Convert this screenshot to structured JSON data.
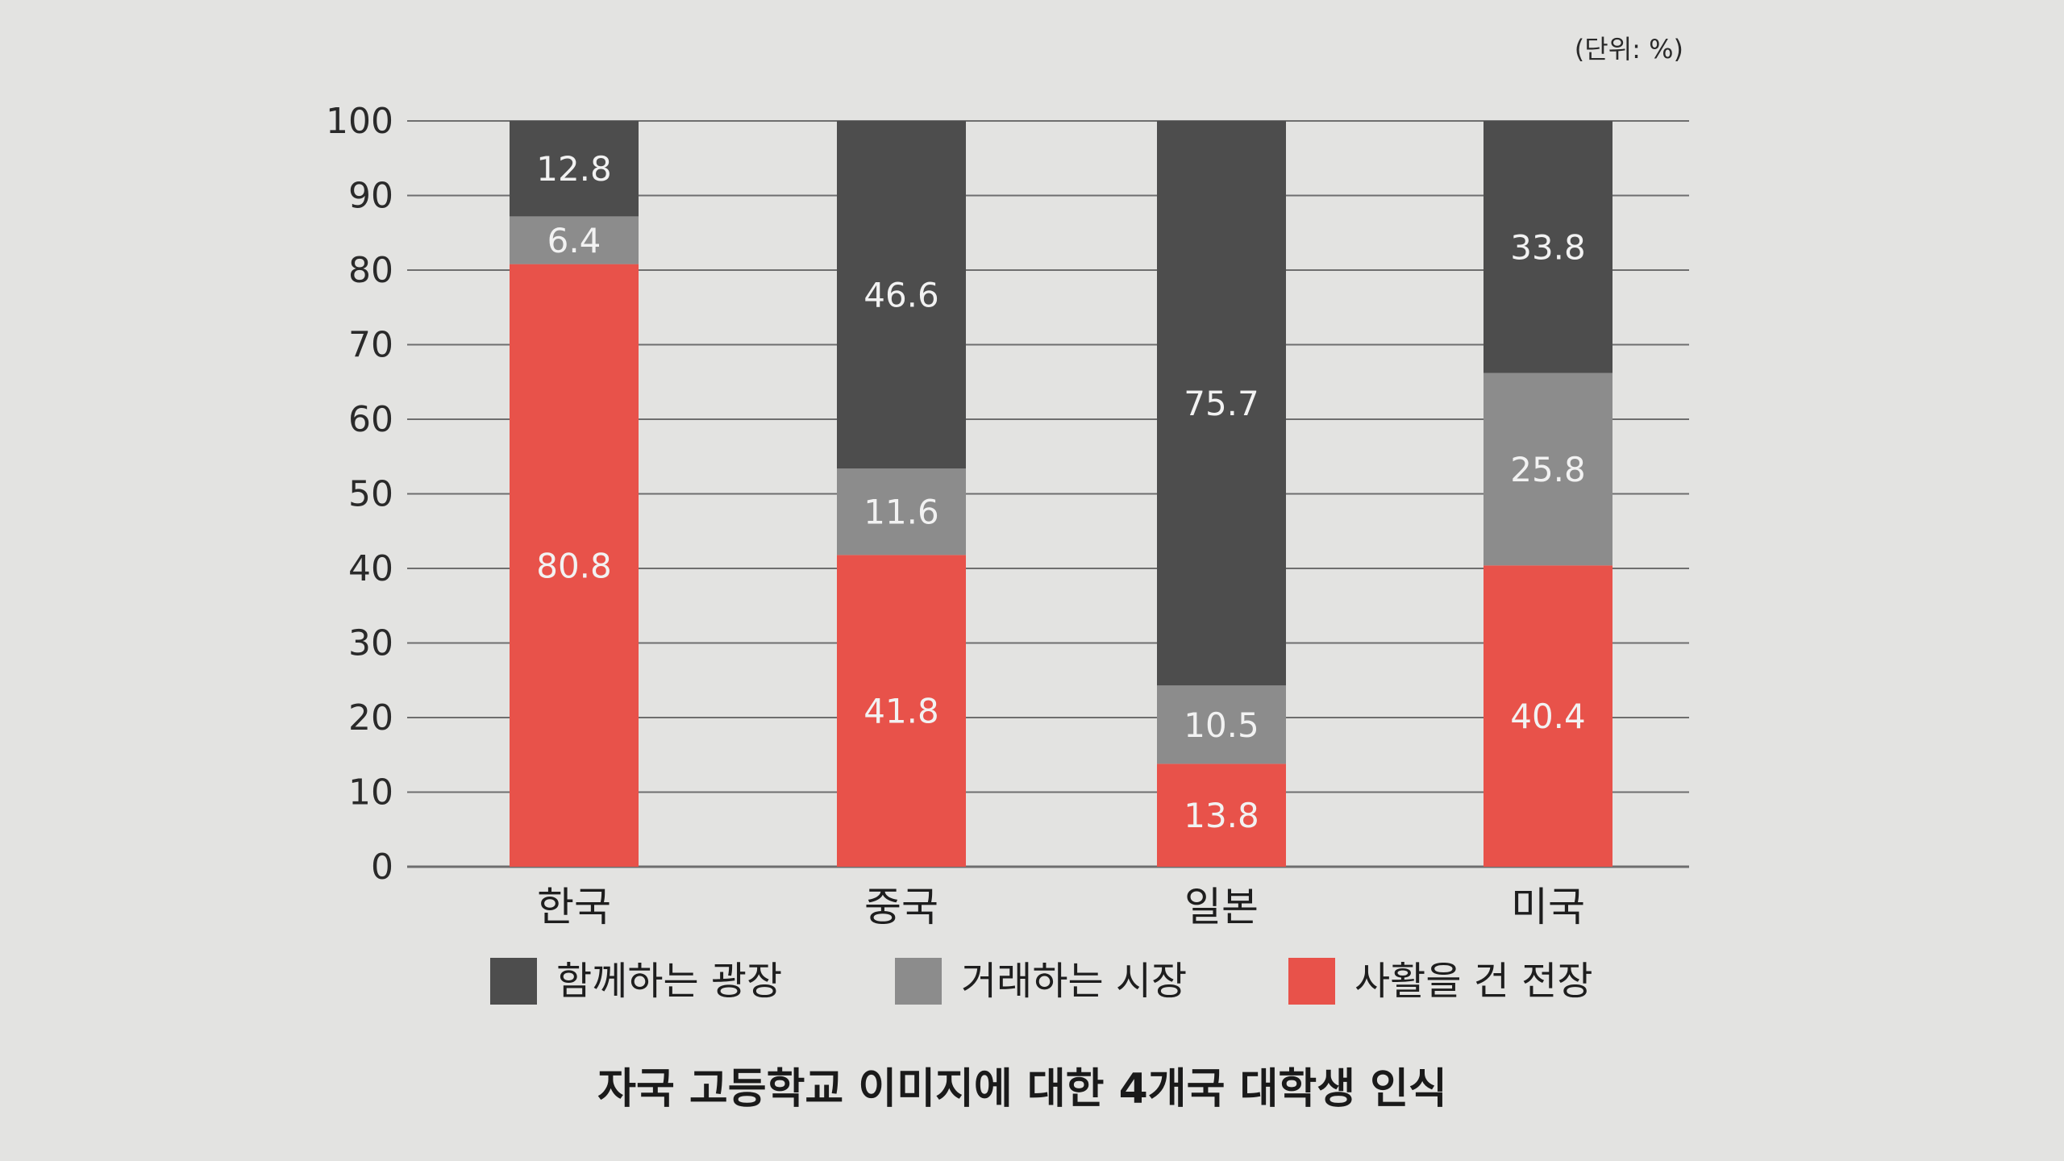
{
  "chart_data": {
    "type": "bar",
    "stacked": true,
    "title": "자국 고등학교 이미지에 대한 4개국 대학생 인식",
    "unit_note": "(단위: %)",
    "categories": [
      "한국",
      "중국",
      "일본",
      "미국"
    ],
    "ylim": [
      0,
      100
    ],
    "yticks": [
      "0",
      "10",
      "20",
      "30",
      "40",
      "50",
      "60",
      "70",
      "80",
      "90",
      "100"
    ],
    "grid": true,
    "legend_position": "bottom",
    "series": [
      {
        "name": "사활을 건 전장",
        "color": "#e8524a",
        "values": [
          80.8,
          41.8,
          13.8,
          40.4
        ],
        "labels": [
          "80.8",
          "41.8",
          "13.8",
          "40.4"
        ]
      },
      {
        "name": "거래하는 시장",
        "color": "#8c8c8c",
        "values": [
          6.4,
          11.6,
          10.5,
          25.8
        ],
        "labels": [
          "6.4",
          "11.6",
          "10.5",
          "25.8"
        ]
      },
      {
        "name": "함께하는 광장",
        "color": "#4d4d4d",
        "values": [
          12.8,
          46.6,
          75.7,
          33.8
        ],
        "labels": [
          "12.8",
          "46.6",
          "75.7",
          "33.8"
        ]
      }
    ],
    "legend_order": [
      "함께하는 광장",
      "거래하는 시장",
      "사활을 건 전장"
    ]
  }
}
